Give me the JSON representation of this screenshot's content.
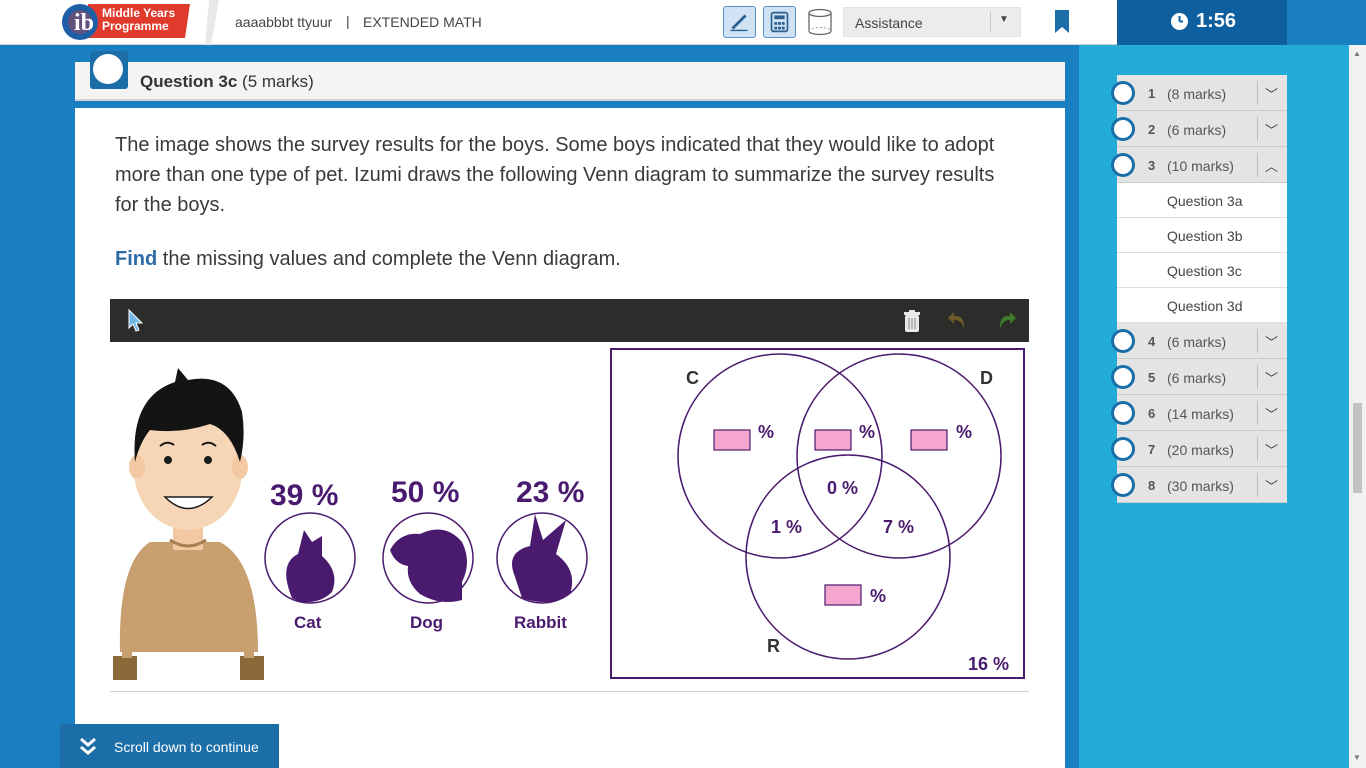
{
  "header": {
    "logo_text_line1": "Middle Years",
    "logo_text_line2": "Programme",
    "student_name": "aaaabbbt ttyuur",
    "separator": "|",
    "course": "EXTENDED MATH",
    "assistance_label": "Assistance",
    "icons": [
      "pen-icon",
      "calculator-icon",
      "geometry-icon",
      "bookmark-icon"
    ]
  },
  "timer": {
    "value": "1:56",
    "icon": "clock-icon"
  },
  "question": {
    "number_label": "Question 3c",
    "marks": "(5 marks)",
    "prompt": "The image shows the survey results for the boys. Some boys indicated that they would like to adopt more than one type of pet. Izumi draws the following Venn diagram to summarize the survey results for the boys.",
    "instruction_bold": "Find",
    "instruction_rest": " the missing values and complete the Venn diagram."
  },
  "figure": {
    "pets": [
      {
        "name": "Cat",
        "percent": "39 %"
      },
      {
        "name": "Dog",
        "percent": "50 %"
      },
      {
        "name": "Rabbit",
        "percent": "23 %"
      }
    ],
    "venn": {
      "labels": {
        "c": "C",
        "d": "D",
        "r": "R"
      },
      "c_and_d_and_r": "0 %",
      "c_and_r_only": "1 %",
      "d_and_r_only": "7 %",
      "outside": "16 %",
      "unit": "%"
    }
  },
  "nav": {
    "questions": [
      {
        "num": "1",
        "marks": "(8 marks)",
        "expanded": false
      },
      {
        "num": "2",
        "marks": "(6 marks)",
        "expanded": false
      },
      {
        "num": "3",
        "marks": "(10 marks)",
        "expanded": true,
        "subs": [
          "Question 3a",
          "Question 3b",
          "Question 3c",
          "Question 3d"
        ]
      },
      {
        "num": "4",
        "marks": "(6 marks)",
        "expanded": false
      },
      {
        "num": "5",
        "marks": "(6 marks)",
        "expanded": false
      },
      {
        "num": "6",
        "marks": "(14 marks)",
        "expanded": false
      },
      {
        "num": "7",
        "marks": "(20 marks)",
        "expanded": false
      },
      {
        "num": "8",
        "marks": "(30 marks)",
        "expanded": false
      }
    ]
  },
  "footer": {
    "scroll_label": "Scroll down to continue"
  },
  "colors": {
    "brand_blue": "#1b6ea8",
    "side_cyan": "#24acd8",
    "venn_purple": "#4a1a6e",
    "input_pink": "#f4a6d0",
    "logo_red": "#e03a2c"
  }
}
